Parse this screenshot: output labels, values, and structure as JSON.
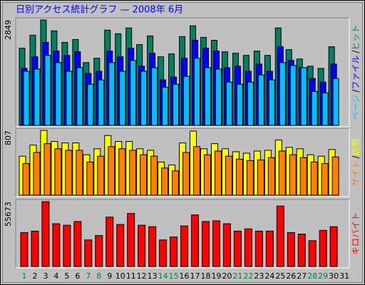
{
  "chart_data": [
    {
      "type": "bar",
      "title": "日別アクセス統計グラフ — 2008年 6月",
      "ylim": [
        0,
        2849
      ],
      "yticks": [
        2849
      ],
      "legend_separator": "/",
      "series": [
        {
          "name": "ヒット",
          "color": "#008060",
          "values": [
            2087,
            2438,
            2849,
            2555,
            2243,
            2321,
            1697,
            1814,
            2574,
            2477,
            2633,
            2184,
            2418,
            1853,
            1931,
            2399,
            2691,
            2379,
            2301,
            1989,
            1950,
            1892,
            2009,
            1892,
            2633,
            2048,
            1794,
            1599,
            1541,
            2126,
            null
          ]
        },
        {
          "name": "ファイル",
          "color": "#0000ff",
          "values": [
            1541,
            1853,
            2243,
            2009,
            1892,
            1989,
            1404,
            1463,
            2009,
            1853,
            2087,
            1599,
            1950,
            1229,
            1307,
            1814,
            2301,
            2087,
            2009,
            1560,
            1599,
            1463,
            1658,
            1463,
            2126,
            1755,
            1560,
            1268,
            1170,
            1658,
            null
          ]
        },
        {
          "name": "ページ",
          "color": "#00c0ff",
          "values": [
            1463,
            1521,
            1892,
            1697,
            1463,
            1560,
            1112,
            1229,
            1697,
            1463,
            1755,
            1463,
            1560,
            1034,
            1112,
            1326,
            1814,
            1560,
            1521,
            1170,
            1112,
            1170,
            1365,
            1229,
            1697,
            1619,
            1560,
            917,
            878,
            1268,
            null
          ]
        }
      ]
    },
    {
      "type": "bar",
      "ylim": [
        0,
        807
      ],
      "yticks": [
        807
      ],
      "legend_separator": "/",
      "series": [
        {
          "name": "訪問",
          "color": "#ffff00",
          "values": [
            486,
            624,
            807,
            669,
            651,
            651,
            504,
            578,
            743,
            669,
            669,
            578,
            559,
            413,
            376,
            651,
            798,
            578,
            642,
            578,
            541,
            523,
            550,
            559,
            688,
            596,
            578,
            504,
            486,
            569,
            null
          ]
        },
        {
          "name": "サイト",
          "color": "#ff8000",
          "values": [
            394,
            532,
            642,
            578,
            559,
            559,
            413,
            486,
            605,
            578,
            559,
            504,
            486,
            339,
            303,
            532,
            605,
            504,
            550,
            486,
            449,
            431,
            440,
            468,
            550,
            504,
            468,
            413,
            394,
            477,
            null
          ]
        }
      ]
    },
    {
      "type": "bar",
      "ylim": [
        0,
        55673
      ],
      "yticks": [
        55673
      ],
      "categories": [
        "1",
        "2",
        "3",
        "4",
        "5",
        "6",
        "7",
        "8",
        "9",
        "10",
        "11",
        "12",
        "13",
        "14",
        "15",
        "16",
        "17",
        "18",
        "19",
        "20",
        "21",
        "22",
        "23",
        "24",
        "25",
        "26",
        "27",
        "28",
        "29",
        "30",
        "31"
      ],
      "category_colors": [
        "#008040",
        "#000000",
        "#000000",
        "#000000",
        "#000000",
        "#000000",
        "#008040",
        "#008040",
        "#000000",
        "#000000",
        "#000000",
        "#000000",
        "#000000",
        "#008040",
        "#008040",
        "#000000",
        "#000000",
        "#000000",
        "#000000",
        "#000000",
        "#008040",
        "#008040",
        "#000000",
        "#000000",
        "#000000",
        "#000000",
        "#000000",
        "#008040",
        "#008040",
        "#000000",
        "#000000"
      ],
      "series": [
        {
          "name": "キロバイト",
          "color": "#ff0000",
          "values": [
            29100,
            30365,
            55673,
            36691,
            35426,
            38589,
            22774,
            26569,
            42384,
            36058,
            45547,
            35426,
            34160,
            22774,
            25304,
            34793,
            44282,
            38589,
            39221,
            36691,
            30365,
            32263,
            30365,
            30365,
            51873,
            29100,
            27834,
            22141,
            30997,
            34160,
            null
          ]
        }
      ]
    }
  ]
}
